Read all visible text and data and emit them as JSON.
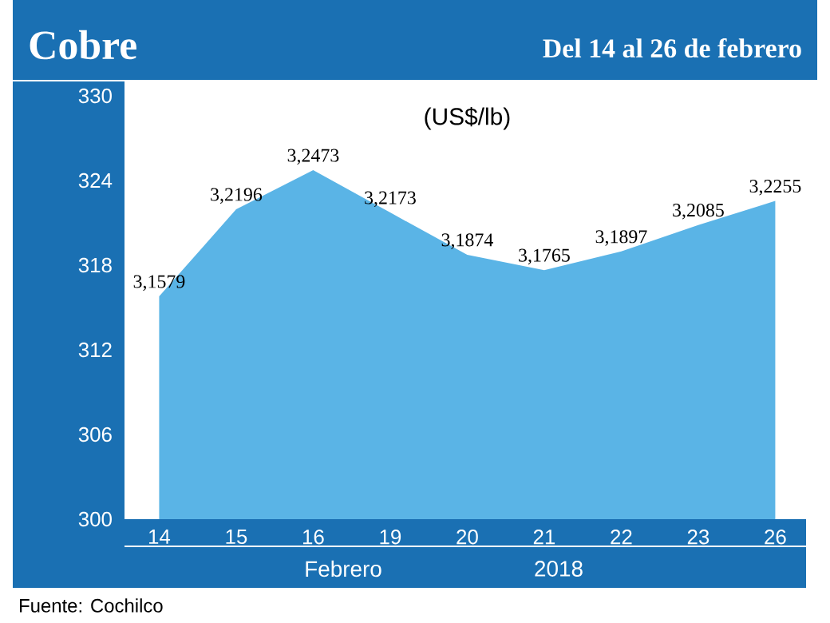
{
  "chart_data": {
    "type": "area",
    "title": "Cobre",
    "subtitle": "Del 14 al 26 de febrero",
    "ylabel": "(US$/lb)",
    "xlabel": "Febrero",
    "categories": [
      "14",
      "15",
      "16",
      "19",
      "20",
      "21",
      "22",
      "23",
      "26"
    ],
    "values": [
      315.79,
      321.96,
      324.73,
      321.73,
      318.74,
      317.65,
      318.97,
      320.85,
      322.55
    ],
    "value_labels": [
      "3,1579",
      "3,2196",
      "3,2473",
      "3,2173",
      "3,1874",
      "3,1765",
      "3,1897",
      "3,2085",
      "3,2255"
    ],
    "color": "#5ab4e6",
    "ylim": [
      300,
      330
    ],
    "yticks": [
      300,
      306,
      312,
      318,
      324,
      330
    ],
    "grid": false,
    "annotations": [
      "2018",
      "Fuente: Cochilco"
    ]
  }
}
